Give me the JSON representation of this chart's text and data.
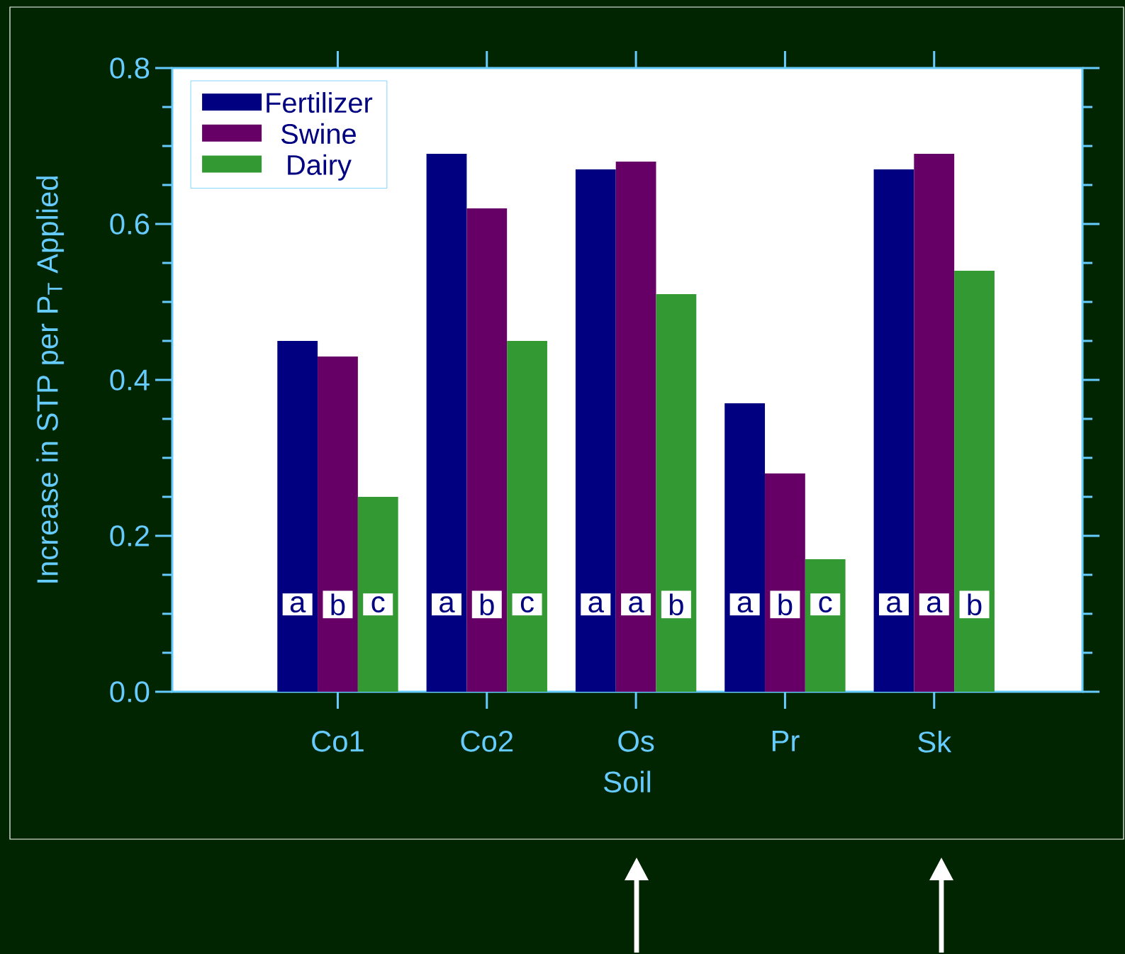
{
  "chart_data": {
    "type": "bar",
    "xlabel": "Soil",
    "ylabel": "Increase in STP per P$_{T}$ Applied",
    "categories": [
      "Co1",
      "Co2",
      "Os",
      "Pr",
      "Sk"
    ],
    "series": [
      {
        "name": "Fertilizer",
        "color": "#000080",
        "values": [
          0.45,
          0.69,
          0.67,
          0.37,
          0.67
        ],
        "value_labels": [
          "a",
          "a",
          "a",
          "a",
          "a"
        ]
      },
      {
        "name": "Swine",
        "color": "#660066",
        "values": [
          0.43,
          0.62,
          0.68,
          0.28,
          0.69
        ],
        "value_labels": [
          "b",
          "b",
          "a",
          "b",
          "a"
        ]
      },
      {
        "name": "Dairy",
        "color": "#339933",
        "values": [
          0.25,
          0.45,
          0.51,
          0.17,
          0.54
        ],
        "value_labels": [
          "c",
          "c",
          "b",
          "c",
          "b"
        ]
      }
    ],
    "ylim": [
      0,
      0.8
    ],
    "yticks": [
      {
        "value": 0,
        "label": "0.0"
      },
      {
        "value": 0.05,
        "label": null
      },
      {
        "value": 0.1,
        "label": null
      },
      {
        "value": 0.15,
        "label": null
      },
      0.2,
      {
        "value": 0.25,
        "label": null
      },
      {
        "value": 0.3,
        "label": null
      },
      {
        "value": 0.35,
        "label": null
      },
      0.4,
      {
        "value": 0.45,
        "label": null
      },
      {
        "value": 0.5,
        "label": null
      },
      {
        "value": 0.55,
        "label": null
      },
      0.6,
      {
        "value": 0.65,
        "label": null
      },
      {
        "value": 0.7,
        "label": null
      },
      {
        "value": 0.75,
        "label": null
      },
      0.8
    ],
    "legend": "top left",
    "grid": false
  }
}
